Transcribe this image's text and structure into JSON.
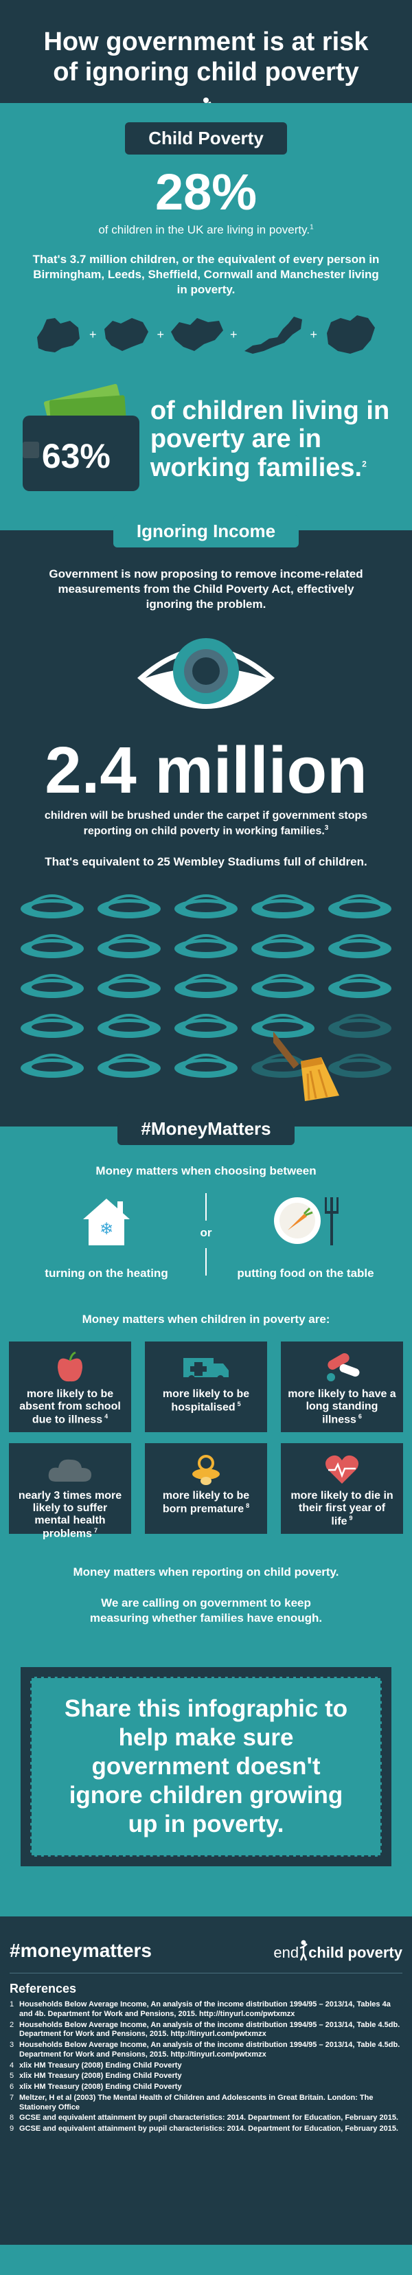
{
  "header": {
    "title_line1": "How government is at risk",
    "title_line2": "of ignoring child poverty"
  },
  "child_poverty": {
    "heading": "Child Poverty",
    "stat": "28%",
    "stat_text": "of children in the UK are living in poverty.",
    "stat_note": "1",
    "equiv_text": "That's 3.7 million children, or the equivalent of every person in Birmingham, Leeds, Sheffield, Cornwall and Manchester living in poverty.",
    "working_stat": "63%",
    "working_text_line1": "of children living in",
    "working_text_line2": "poverty are in",
    "working_text_line3": "working families.",
    "working_note": "2"
  },
  "ignoring_income": {
    "heading": "Ignoring Income",
    "intro": "Government is now proposing to remove income-related measurements from the Child Poverty Act, effectively ignoring the problem.",
    "big_stat": "2.4 million",
    "big_stat_text": "children will be brushed under the carpet if government stops reporting on child poverty in working families.",
    "big_stat_note": "3",
    "equiv": "That's equivalent to 25 Wembley Stadiums full of children."
  },
  "money_matters": {
    "heading": "#MoneyMatters",
    "choosing": "Money matters when choosing between",
    "option_a": "turning on the heating",
    "or": "or",
    "option_b": "putting food on the table",
    "children_intro": "Money matters when children in poverty are:",
    "cells": [
      {
        "text": "more likely to be absent from school due to illness",
        "note": "4",
        "icon": "apple-icon"
      },
      {
        "text": "more likely to be hospitalised",
        "note": "5",
        "icon": "ambulance-icon"
      },
      {
        "text": "more likely to have a long standing illness",
        "note": "6",
        "icon": "pills-icon"
      },
      {
        "text": "nearly 3 times more likely to suffer mental health problems",
        "note": "7",
        "icon": "cloud-icon"
      },
      {
        "text": "more likely to be born premature",
        "note": "8",
        "icon": "pacifier-icon"
      },
      {
        "text": "more likely to die in their first year of life",
        "note": "9",
        "icon": "heartbeat-icon"
      }
    ],
    "reporting": "Money matters when reporting on child poverty.",
    "calling": "We are calling on government to keep measuring whether families have enough."
  },
  "share": {
    "text": "Share this infographic to help make sure government doesn't ignore children growing up in poverty."
  },
  "footer": {
    "hashtag": "#moneymatters",
    "logo_pre": "end",
    "logo_post": "child poverty",
    "refs_heading": "References",
    "refs": [
      {
        "n": "1",
        "text": "Households Below Average Income, An analysis of the income distribution 1994/95 – 2013/14, Tables 4a and 4b. Department for Work and Pensions, 2015. http://tinyurl.com/pwtxmzx"
      },
      {
        "n": "2",
        "text": "Households Below Average Income, An analysis of the income distribution 1994/95 – 2013/14, Table 4.5db. Department for Work and Pensions, 2015. http://tinyurl.com/pwtxmzx"
      },
      {
        "n": "3",
        "text": "Households Below Average Income, An analysis of the income distribution 1994/95 – 2013/14, Table 4.5db. Department for Work and Pensions, 2015. http://tinyurl.com/pwtxmzx"
      },
      {
        "n": "4",
        "text": "xlix HM Treasury (2008) Ending Child Poverty"
      },
      {
        "n": "5",
        "text": "xlix HM Treasury (2008) Ending Child Poverty"
      },
      {
        "n": "6",
        "text": "xlix HM Treasury (2008) Ending Child Poverty"
      },
      {
        "n": "7",
        "text": "Meltzer, H et al (2003) The Mental Health of Children and Adolescents in Great Britain. London: The Stationery Office"
      },
      {
        "n": "8",
        "text": "GCSE and equivalent attainment by pupil characteristics: 2014. Department for Education, February 2015."
      },
      {
        "n": "9",
        "text": "GCSE and equivalent attainment by pupil characteristics: 2014. Department for Education, February 2015."
      }
    ]
  },
  "colors": {
    "dark": "#1f3a46",
    "teal": "#2b9b9e",
    "red": "#e05a5a",
    "yellow": "#f2b233"
  }
}
